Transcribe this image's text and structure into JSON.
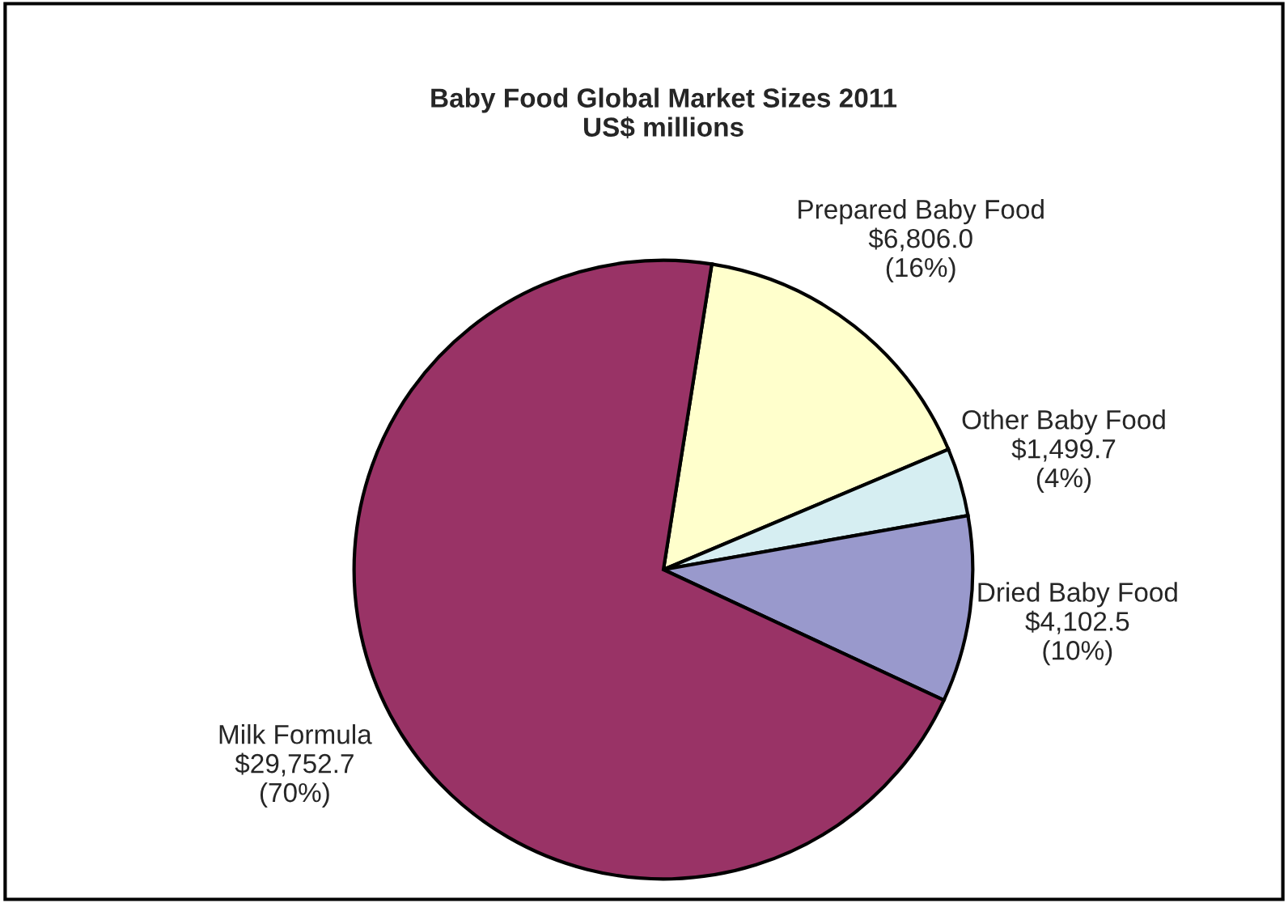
{
  "chart_data": {
    "type": "pie",
    "title": "Baby Food Global Market Sizes 2011",
    "subtitle": "US$ millions",
    "categories": [
      "Prepared Baby Food",
      "Other Baby Food",
      "Dried Baby Food",
      "Milk Formula"
    ],
    "values": [
      6806.0,
      1499.7,
      4102.5,
      29752.7
    ],
    "value_labels": [
      "$6,806.0\n(16%)",
      "$1,499.7\n(4%)",
      "$4,102.5\n(10%)",
      "$29,752.7\n(70%)"
    ],
    "colors": [
      "#ffffcc",
      "#d6eef2",
      "#9999cc",
      "#993366"
    ],
    "legend": false
  }
}
